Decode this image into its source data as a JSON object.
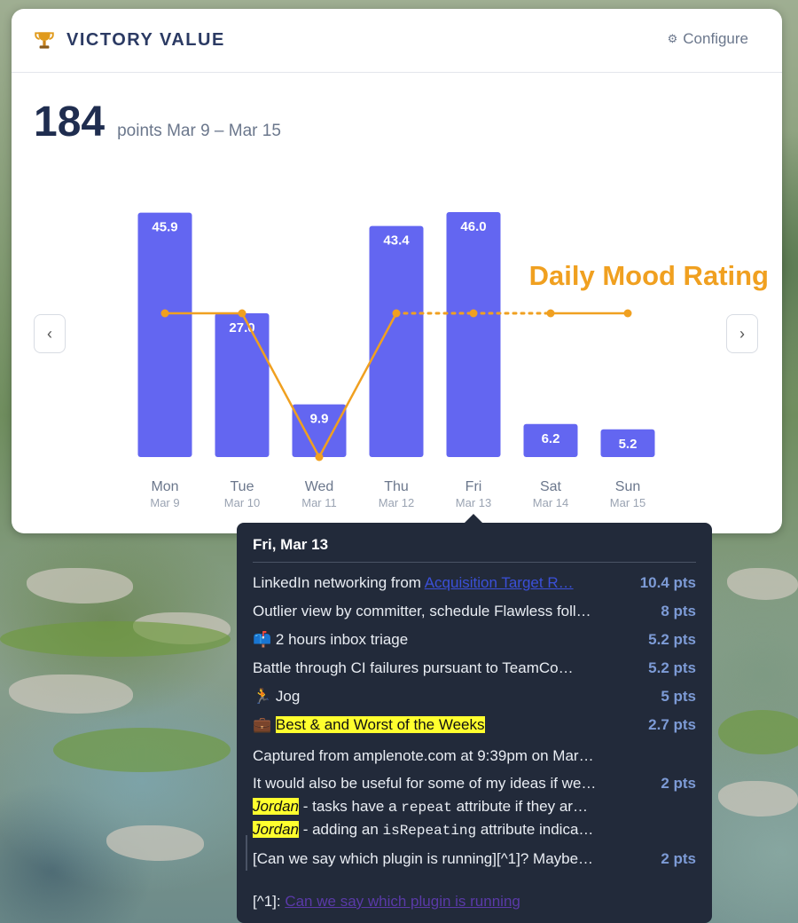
{
  "header": {
    "title": "VICTORY VALUE",
    "configure_label": "Configure"
  },
  "summary": {
    "total": "184",
    "range": "points Mar 9 – Mar 15"
  },
  "nav": {
    "prev": "‹",
    "next": "›"
  },
  "colors": {
    "bar": "#6366f1",
    "mood_line": "#f0a020",
    "tooltip_bg": "#222a3a"
  },
  "chart_data": {
    "type": "bar",
    "categories": [
      "Mon",
      "Tue",
      "Wed",
      "Thu",
      "Fri",
      "Sat",
      "Sun"
    ],
    "dates": [
      "Mar 9",
      "Mar 10",
      "Mar 11",
      "Mar 12",
      "Mar 13",
      "Mar 14",
      "Mar 15"
    ],
    "values": [
      45.9,
      27.0,
      9.9,
      43.4,
      46.0,
      6.2,
      5.2
    ],
    "value_labels": [
      "45.9",
      "27.0",
      "9.9",
      "43.4",
      "46.0",
      "6.2",
      "5.2"
    ],
    "overlay": {
      "name": "Daily Mood Rating",
      "type": "line",
      "values": [
        3,
        3,
        -1,
        3,
        3,
        3,
        3
      ],
      "dashed_segment": [
        3,
        5
      ]
    }
  },
  "tooltip": {
    "title": "Fri, Mar 13",
    "items": [
      {
        "text": "LinkedIn networking from ",
        "link": "Acquisition Target R…",
        "pts": "10.4 pts"
      },
      {
        "text": "Outlier view by committer, schedule Flawless foll…",
        "pts": "8 pts"
      },
      {
        "icon": "📫",
        "text": "2 hours inbox triage",
        "pts": "5.2 pts"
      },
      {
        "text": "Battle through CI failures pursuant to TeamCo…",
        "pts": "5.2 pts"
      },
      {
        "icon": "🏃",
        "text": "Jog",
        "pts": "5 pts"
      },
      {
        "icon": "💼",
        "highlight": "Best & and Worst of the Weeks",
        "pts": "2.7 pts"
      },
      {
        "text": "Captured from amplenote.com at 9:39pm on Mar…"
      },
      {
        "text": "It would also be useful for some of my ideas if we…",
        "pts": "2 pts"
      },
      {
        "name": "Jordan",
        "pre": " - tasks have a ",
        "code": "repeat",
        "post": " attribute if they ar…"
      },
      {
        "name": "Jordan",
        "pre": " - adding an ",
        "code": "isRepeating",
        "post": " attribute indica…"
      },
      {
        "text": "[Can we say which plugin is running][^1]? Maybe…",
        "pts": "2 pts"
      },
      {
        "text": "[^1]: ",
        "link": "Can we say which plugin is running"
      }
    ]
  }
}
